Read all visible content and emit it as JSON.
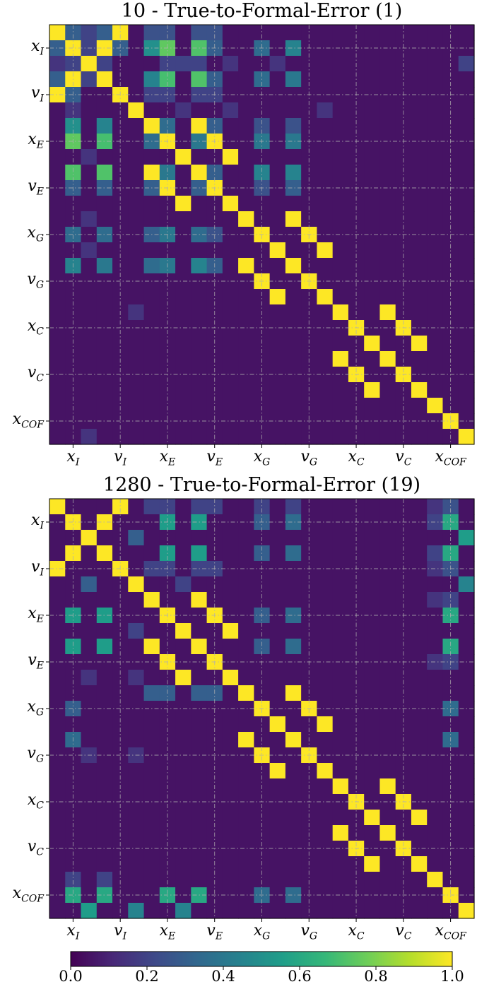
{
  "charts": [
    {
      "title": "10 - True-to-Formal-Error (1)",
      "y_tick_labels": [
        {
          "base": "x",
          "sub": "I"
        },
        {
          "base": "v",
          "sub": "I"
        },
        {
          "base": "x",
          "sub": "E"
        },
        {
          "base": "v",
          "sub": "E"
        },
        {
          "base": "x",
          "sub": "G"
        },
        {
          "base": "v",
          "sub": "G"
        },
        {
          "base": "x",
          "sub": "C"
        },
        {
          "base": "v",
          "sub": "C"
        },
        {
          "base": "x",
          "sub": "COF"
        }
      ],
      "x_tick_labels": [
        {
          "base": "x",
          "sub": "I"
        },
        {
          "base": "v",
          "sub": "I"
        },
        {
          "base": "x",
          "sub": "E"
        },
        {
          "base": "v",
          "sub": "E"
        },
        {
          "base": "x",
          "sub": "G"
        },
        {
          "base": "v",
          "sub": "G"
        },
        {
          "base": "x",
          "sub": "C"
        },
        {
          "base": "v",
          "sub": "C"
        },
        {
          "base": "x",
          "sub": "COF"
        }
      ]
    },
    {
      "title": "1280 - True-to-Formal-Error (19)",
      "y_tick_labels": [
        {
          "base": "x",
          "sub": "I"
        },
        {
          "base": "v",
          "sub": "I"
        },
        {
          "base": "x",
          "sub": "E"
        },
        {
          "base": "v",
          "sub": "E"
        },
        {
          "base": "x",
          "sub": "G"
        },
        {
          "base": "v",
          "sub": "G"
        },
        {
          "base": "x",
          "sub": "C"
        },
        {
          "base": "v",
          "sub": "C"
        },
        {
          "base": "x",
          "sub": "COF"
        }
      ],
      "x_tick_labels": [
        {
          "base": "x",
          "sub": "I"
        },
        {
          "base": "v",
          "sub": "I"
        },
        {
          "base": "x",
          "sub": "E"
        },
        {
          "base": "v",
          "sub": "E"
        },
        {
          "base": "x",
          "sub": "G"
        },
        {
          "base": "v",
          "sub": "G"
        },
        {
          "base": "x",
          "sub": "C"
        },
        {
          "base": "v",
          "sub": "C"
        },
        {
          "base": "x",
          "sub": "COF"
        }
      ]
    }
  ],
  "colorbar": {
    "ticks": [
      "0.0",
      "0.2",
      "0.4",
      "0.6",
      "0.8",
      "1.0"
    ],
    "range": [
      0,
      1
    ],
    "colormap": "viridis",
    "stops": [
      "#440154",
      "#482878",
      "#3e4a89",
      "#31688e",
      "#26828e",
      "#1f9e89",
      "#35b779",
      "#6ece58",
      "#b5de2b",
      "#fde725"
    ]
  },
  "chart_data": [
    {
      "type": "heatmap",
      "title": "10 - True-to-Formal-Error (1)",
      "size": 27,
      "background_value": 0.05,
      "vrange": [
        0,
        1
      ],
      "grid": true,
      "cells": [
        [
          0,
          0,
          1
        ],
        [
          1,
          1,
          1
        ],
        [
          2,
          2,
          1
        ],
        [
          3,
          3,
          1
        ],
        [
          4,
          4,
          1
        ],
        [
          5,
          5,
          1
        ],
        [
          6,
          6,
          1
        ],
        [
          7,
          7,
          1
        ],
        [
          8,
          8,
          1
        ],
        [
          9,
          9,
          1
        ],
        [
          10,
          10,
          1
        ],
        [
          11,
          11,
          1
        ],
        [
          12,
          12,
          1
        ],
        [
          13,
          13,
          1
        ],
        [
          14,
          14,
          1
        ],
        [
          15,
          15,
          1
        ],
        [
          16,
          16,
          1
        ],
        [
          17,
          17,
          1
        ],
        [
          18,
          18,
          1
        ],
        [
          19,
          19,
          1
        ],
        [
          20,
          20,
          1
        ],
        [
          21,
          21,
          1
        ],
        [
          22,
          22,
          1
        ],
        [
          23,
          23,
          1
        ],
        [
          24,
          24,
          1
        ],
        [
          25,
          25,
          1
        ],
        [
          26,
          26,
          1
        ],
        [
          0,
          4,
          1
        ],
        [
          4,
          0,
          1
        ],
        [
          1,
          3,
          1
        ],
        [
          3,
          1,
          1
        ],
        [
          6,
          9,
          1
        ],
        [
          9,
          6,
          1
        ],
        [
          7,
          10,
          1
        ],
        [
          10,
          7,
          1
        ],
        [
          8,
          11,
          1
        ],
        [
          11,
          8,
          1
        ],
        [
          12,
          15,
          1
        ],
        [
          15,
          12,
          1
        ],
        [
          13,
          16,
          1
        ],
        [
          16,
          13,
          1
        ],
        [
          14,
          17,
          1
        ],
        [
          17,
          14,
          1
        ],
        [
          18,
          21,
          1
        ],
        [
          21,
          18,
          1
        ],
        [
          19,
          22,
          1
        ],
        [
          22,
          19,
          1
        ],
        [
          20,
          23,
          1
        ],
        [
          23,
          20,
          1
        ],
        [
          0,
          1,
          0.3
        ],
        [
          1,
          0,
          0.3
        ],
        [
          0,
          3,
          0.3
        ],
        [
          3,
          0,
          0.3
        ],
        [
          1,
          4,
          0.3
        ],
        [
          4,
          1,
          0.3
        ],
        [
          0,
          6,
          0.25
        ],
        [
          0,
          7,
          0.25
        ],
        [
          0,
          9,
          0.25
        ],
        [
          0,
          10,
          0.25
        ],
        [
          1,
          6,
          0.5
        ],
        [
          6,
          1,
          0.5
        ],
        [
          1,
          7,
          0.75
        ],
        [
          7,
          1,
          0.75
        ],
        [
          1,
          9,
          0.72
        ],
        [
          9,
          1,
          0.72
        ],
        [
          1,
          10,
          0.3
        ],
        [
          10,
          1,
          0.3
        ],
        [
          1,
          13,
          0.35
        ],
        [
          13,
          1,
          0.35
        ],
        [
          1,
          15,
          0.45
        ],
        [
          15,
          1,
          0.45
        ],
        [
          3,
          6,
          0.45
        ],
        [
          6,
          3,
          0.45
        ],
        [
          3,
          7,
          0.7
        ],
        [
          7,
          3,
          0.7
        ],
        [
          3,
          9,
          0.72
        ],
        [
          9,
          3,
          0.72
        ],
        [
          3,
          10,
          0.3
        ],
        [
          10,
          3,
          0.3
        ],
        [
          3,
          13,
          0.35
        ],
        [
          13,
          3,
          0.35
        ],
        [
          3,
          15,
          0.4
        ],
        [
          15,
          3,
          0.4
        ],
        [
          2,
          7,
          0.2
        ],
        [
          2,
          8,
          0.2
        ],
        [
          2,
          9,
          0.2
        ],
        [
          2,
          11,
          0.15
        ],
        [
          2,
          14,
          0.15
        ],
        [
          2,
          26,
          0.2
        ],
        [
          4,
          6,
          0.2
        ],
        [
          4,
          7,
          0.2
        ],
        [
          4,
          9,
          0.2
        ],
        [
          4,
          10,
          0.2
        ],
        [
          5,
          8,
          0.15
        ],
        [
          5,
          11,
          0.15
        ],
        [
          5,
          17,
          0.15
        ],
        [
          6,
          7,
          0.35
        ],
        [
          7,
          6,
          0.35
        ],
        [
          6,
          9,
          1
        ],
        [
          6,
          10,
          0.3
        ],
        [
          10,
          6,
          0.3
        ],
        [
          6,
          13,
          0.25
        ],
        [
          13,
          6,
          0.25
        ],
        [
          6,
          15,
          0.25
        ],
        [
          15,
          6,
          0.25
        ],
        [
          7,
          9,
          0.4
        ],
        [
          9,
          7,
          0.4
        ],
        [
          7,
          13,
          0.4
        ],
        [
          13,
          7,
          0.4
        ],
        [
          7,
          15,
          0.4
        ],
        [
          15,
          7,
          0.4
        ],
        [
          9,
          10,
          0.3
        ],
        [
          10,
          9,
          0.3
        ],
        [
          9,
          13,
          0.45
        ],
        [
          13,
          9,
          0.45
        ],
        [
          9,
          15,
          0.45
        ],
        [
          15,
          9,
          0.45
        ],
        [
          10,
          13,
          0.25
        ],
        [
          13,
          10,
          0.25
        ],
        [
          10,
          15,
          0.3
        ],
        [
          15,
          10,
          0.3
        ],
        [
          0,
          2,
          0.2
        ],
        [
          2,
          0,
          0.15
        ],
        [
          1,
          2,
          0.2
        ],
        [
          2,
          1,
          0.2
        ],
        [
          2,
          3,
          0.2
        ],
        [
          3,
          2,
          0.2
        ],
        [
          8,
          2,
          0.15
        ],
        [
          5,
          1,
          0.15
        ],
        [
          12,
          2,
          0.15
        ],
        [
          13,
          6,
          0.3
        ],
        [
          13,
          9,
          0.35
        ],
        [
          15,
          6,
          0.35
        ],
        [
          15,
          9,
          0.45
        ],
        [
          18,
          5,
          0.15
        ],
        [
          14,
          2,
          0.15
        ],
        [
          26,
          2,
          0.15
        ]
      ]
    },
    {
      "type": "heatmap",
      "title": "1280 - True-to-Formal-Error (19)",
      "size": 27,
      "background_value": 0.05,
      "vrange": [
        0,
        1
      ],
      "grid": true,
      "cells": [
        [
          0,
          0,
          1
        ],
        [
          1,
          1,
          1
        ],
        [
          2,
          2,
          1
        ],
        [
          3,
          3,
          1
        ],
        [
          4,
          4,
          1
        ],
        [
          5,
          5,
          1
        ],
        [
          6,
          6,
          1
        ],
        [
          7,
          7,
          1
        ],
        [
          8,
          8,
          1
        ],
        [
          9,
          9,
          1
        ],
        [
          10,
          10,
          1
        ],
        [
          11,
          11,
          1
        ],
        [
          12,
          12,
          1
        ],
        [
          13,
          13,
          1
        ],
        [
          14,
          14,
          1
        ],
        [
          15,
          15,
          1
        ],
        [
          16,
          16,
          1
        ],
        [
          17,
          17,
          1
        ],
        [
          18,
          18,
          1
        ],
        [
          19,
          19,
          1
        ],
        [
          20,
          20,
          1
        ],
        [
          21,
          21,
          1
        ],
        [
          22,
          22,
          1
        ],
        [
          23,
          23,
          1
        ],
        [
          24,
          24,
          1
        ],
        [
          25,
          25,
          1
        ],
        [
          26,
          26,
          1
        ],
        [
          0,
          4,
          1
        ],
        [
          4,
          0,
          1
        ],
        [
          1,
          3,
          1
        ],
        [
          3,
          1,
          1
        ],
        [
          6,
          9,
          1
        ],
        [
          9,
          6,
          1
        ],
        [
          7,
          10,
          1
        ],
        [
          10,
          7,
          1
        ],
        [
          8,
          11,
          1
        ],
        [
          11,
          8,
          1
        ],
        [
          12,
          15,
          1
        ],
        [
          15,
          12,
          1
        ],
        [
          13,
          16,
          1
        ],
        [
          16,
          13,
          1
        ],
        [
          14,
          17,
          1
        ],
        [
          17,
          14,
          1
        ],
        [
          18,
          21,
          1
        ],
        [
          21,
          18,
          1
        ],
        [
          19,
          22,
          1
        ],
        [
          22,
          19,
          1
        ],
        [
          20,
          23,
          1
        ],
        [
          23,
          20,
          1
        ],
        [
          1,
          7,
          0.55
        ],
        [
          7,
          1,
          0.55
        ],
        [
          1,
          9,
          0.55
        ],
        [
          9,
          1,
          0.55
        ],
        [
          3,
          7,
          0.55
        ],
        [
          7,
          3,
          0.55
        ],
        [
          3,
          9,
          0.55
        ],
        [
          9,
          3,
          0.55
        ],
        [
          1,
          25,
          0.6
        ],
        [
          25,
          1,
          0.6
        ],
        [
          3,
          25,
          0.6
        ],
        [
          25,
          3,
          0.6
        ],
        [
          7,
          25,
          0.6
        ],
        [
          25,
          7,
          0.6
        ],
        [
          9,
          25,
          0.6
        ],
        [
          25,
          9,
          0.6
        ],
        [
          2,
          26,
          0.55
        ],
        [
          26,
          2,
          0.55
        ],
        [
          5,
          26,
          0.45
        ],
        [
          26,
          5,
          0.45
        ],
        [
          1,
          13,
          0.3
        ],
        [
          13,
          1,
          0.3
        ],
        [
          1,
          15,
          0.35
        ],
        [
          15,
          1,
          0.35
        ],
        [
          3,
          13,
          0.3
        ],
        [
          3,
          15,
          0.35
        ],
        [
          7,
          13,
          0.3
        ],
        [
          7,
          15,
          0.35
        ],
        [
          9,
          13,
          0.3
        ],
        [
          9,
          15,
          0.35
        ],
        [
          13,
          25,
          0.35
        ],
        [
          25,
          13,
          0.35
        ],
        [
          15,
          25,
          0.35
        ],
        [
          25,
          15,
          0.35
        ],
        [
          0,
          6,
          0.2
        ],
        [
          0,
          7,
          0.2
        ],
        [
          0,
          9,
          0.2
        ],
        [
          0,
          10,
          0.2
        ],
        [
          0,
          13,
          0.2
        ],
        [
          0,
          15,
          0.2
        ],
        [
          4,
          6,
          0.2
        ],
        [
          4,
          7,
          0.2
        ],
        [
          4,
          9,
          0.2
        ],
        [
          4,
          10,
          0.2
        ],
        [
          5,
          2,
          0.3
        ],
        [
          2,
          5,
          0.3
        ],
        [
          5,
          8,
          0.2
        ],
        [
          8,
          5,
          0.2
        ],
        [
          11,
          2,
          0.15
        ],
        [
          11,
          5,
          0.15
        ],
        [
          12,
          6,
          0.3
        ],
        [
          12,
          7,
          0.3
        ],
        [
          12,
          9,
          0.3
        ],
        [
          12,
          10,
          0.3
        ],
        [
          16,
          2,
          0.15
        ],
        [
          16,
          5,
          0.15
        ],
        [
          26,
          8,
          0.45
        ],
        [
          24,
          1,
          0.2
        ],
        [
          24,
          3,
          0.2
        ],
        [
          1,
          24,
          0.2
        ],
        [
          3,
          24,
          0.2
        ],
        [
          0,
          24,
          0.15
        ],
        [
          4,
          24,
          0.15
        ],
        [
          6,
          24,
          0.15
        ],
        [
          10,
          24,
          0.15
        ],
        [
          0,
          25,
          0.25
        ],
        [
          4,
          25,
          0.25
        ],
        [
          6,
          25,
          0.2
        ],
        [
          10,
          25,
          0.2
        ]
      ]
    }
  ]
}
